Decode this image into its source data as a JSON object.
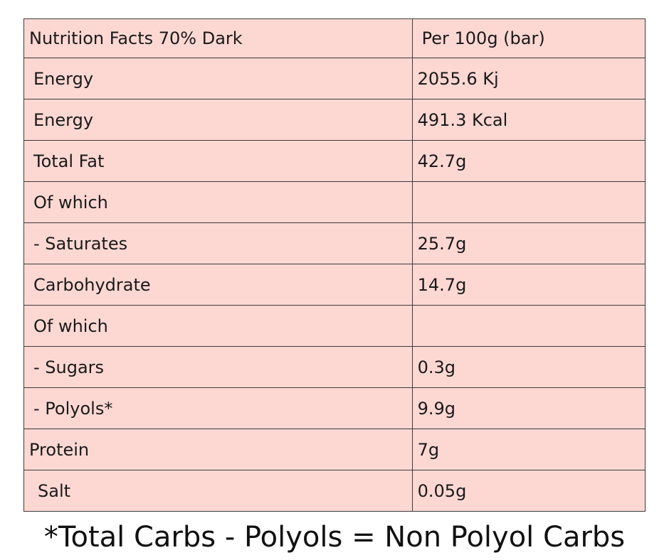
{
  "table": {
    "header": {
      "label": "Nutrition Facts 70% Dark",
      "value": "Per 100g (bar)"
    },
    "rows": [
      {
        "label": "Energy",
        "value": "2055.6 Kj"
      },
      {
        "label": "Energy",
        "value": "491.3 Kcal"
      },
      {
        "label": "Total Fat",
        "value": "42.7g"
      },
      {
        "label": "Of which",
        "value": ""
      },
      {
        "label": "- Saturates",
        "value": "25.7g"
      },
      {
        "label": "Carbohydrate",
        "value": "14.7g"
      },
      {
        "label": "Of which",
        "value": ""
      },
      {
        "label": "- Sugars",
        "value": "0.3g"
      },
      {
        "label": "- Polyols*",
        "value": "9.9g"
      },
      {
        "label": "Protein",
        "value": "7g"
      },
      {
        "label": "Salt",
        "value": "0.05g"
      }
    ]
  },
  "footnote": "*Total Carbs - Polyols = Non Polyol Carbs",
  "colors": {
    "table_background": "#fdd8d3",
    "border": "#3a3a3a",
    "text": "#1a1a1a"
  }
}
